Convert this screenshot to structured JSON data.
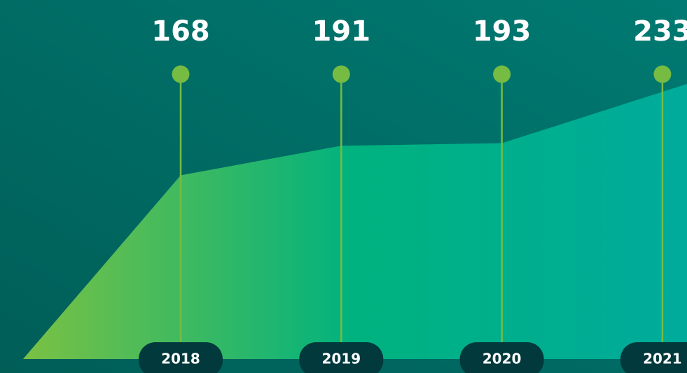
{
  "chart_data": {
    "type": "area",
    "categories": [
      "2018",
      "2019",
      "2020",
      "2021"
    ],
    "values": [
      168,
      191,
      193,
      233
    ],
    "ylim": [
      25,
      250
    ],
    "colors": [
      "#7ac143",
      "#00b27f",
      "#00ab9c"
    ],
    "pin_color": "#76bc43",
    "label_background": "#01393c"
  }
}
